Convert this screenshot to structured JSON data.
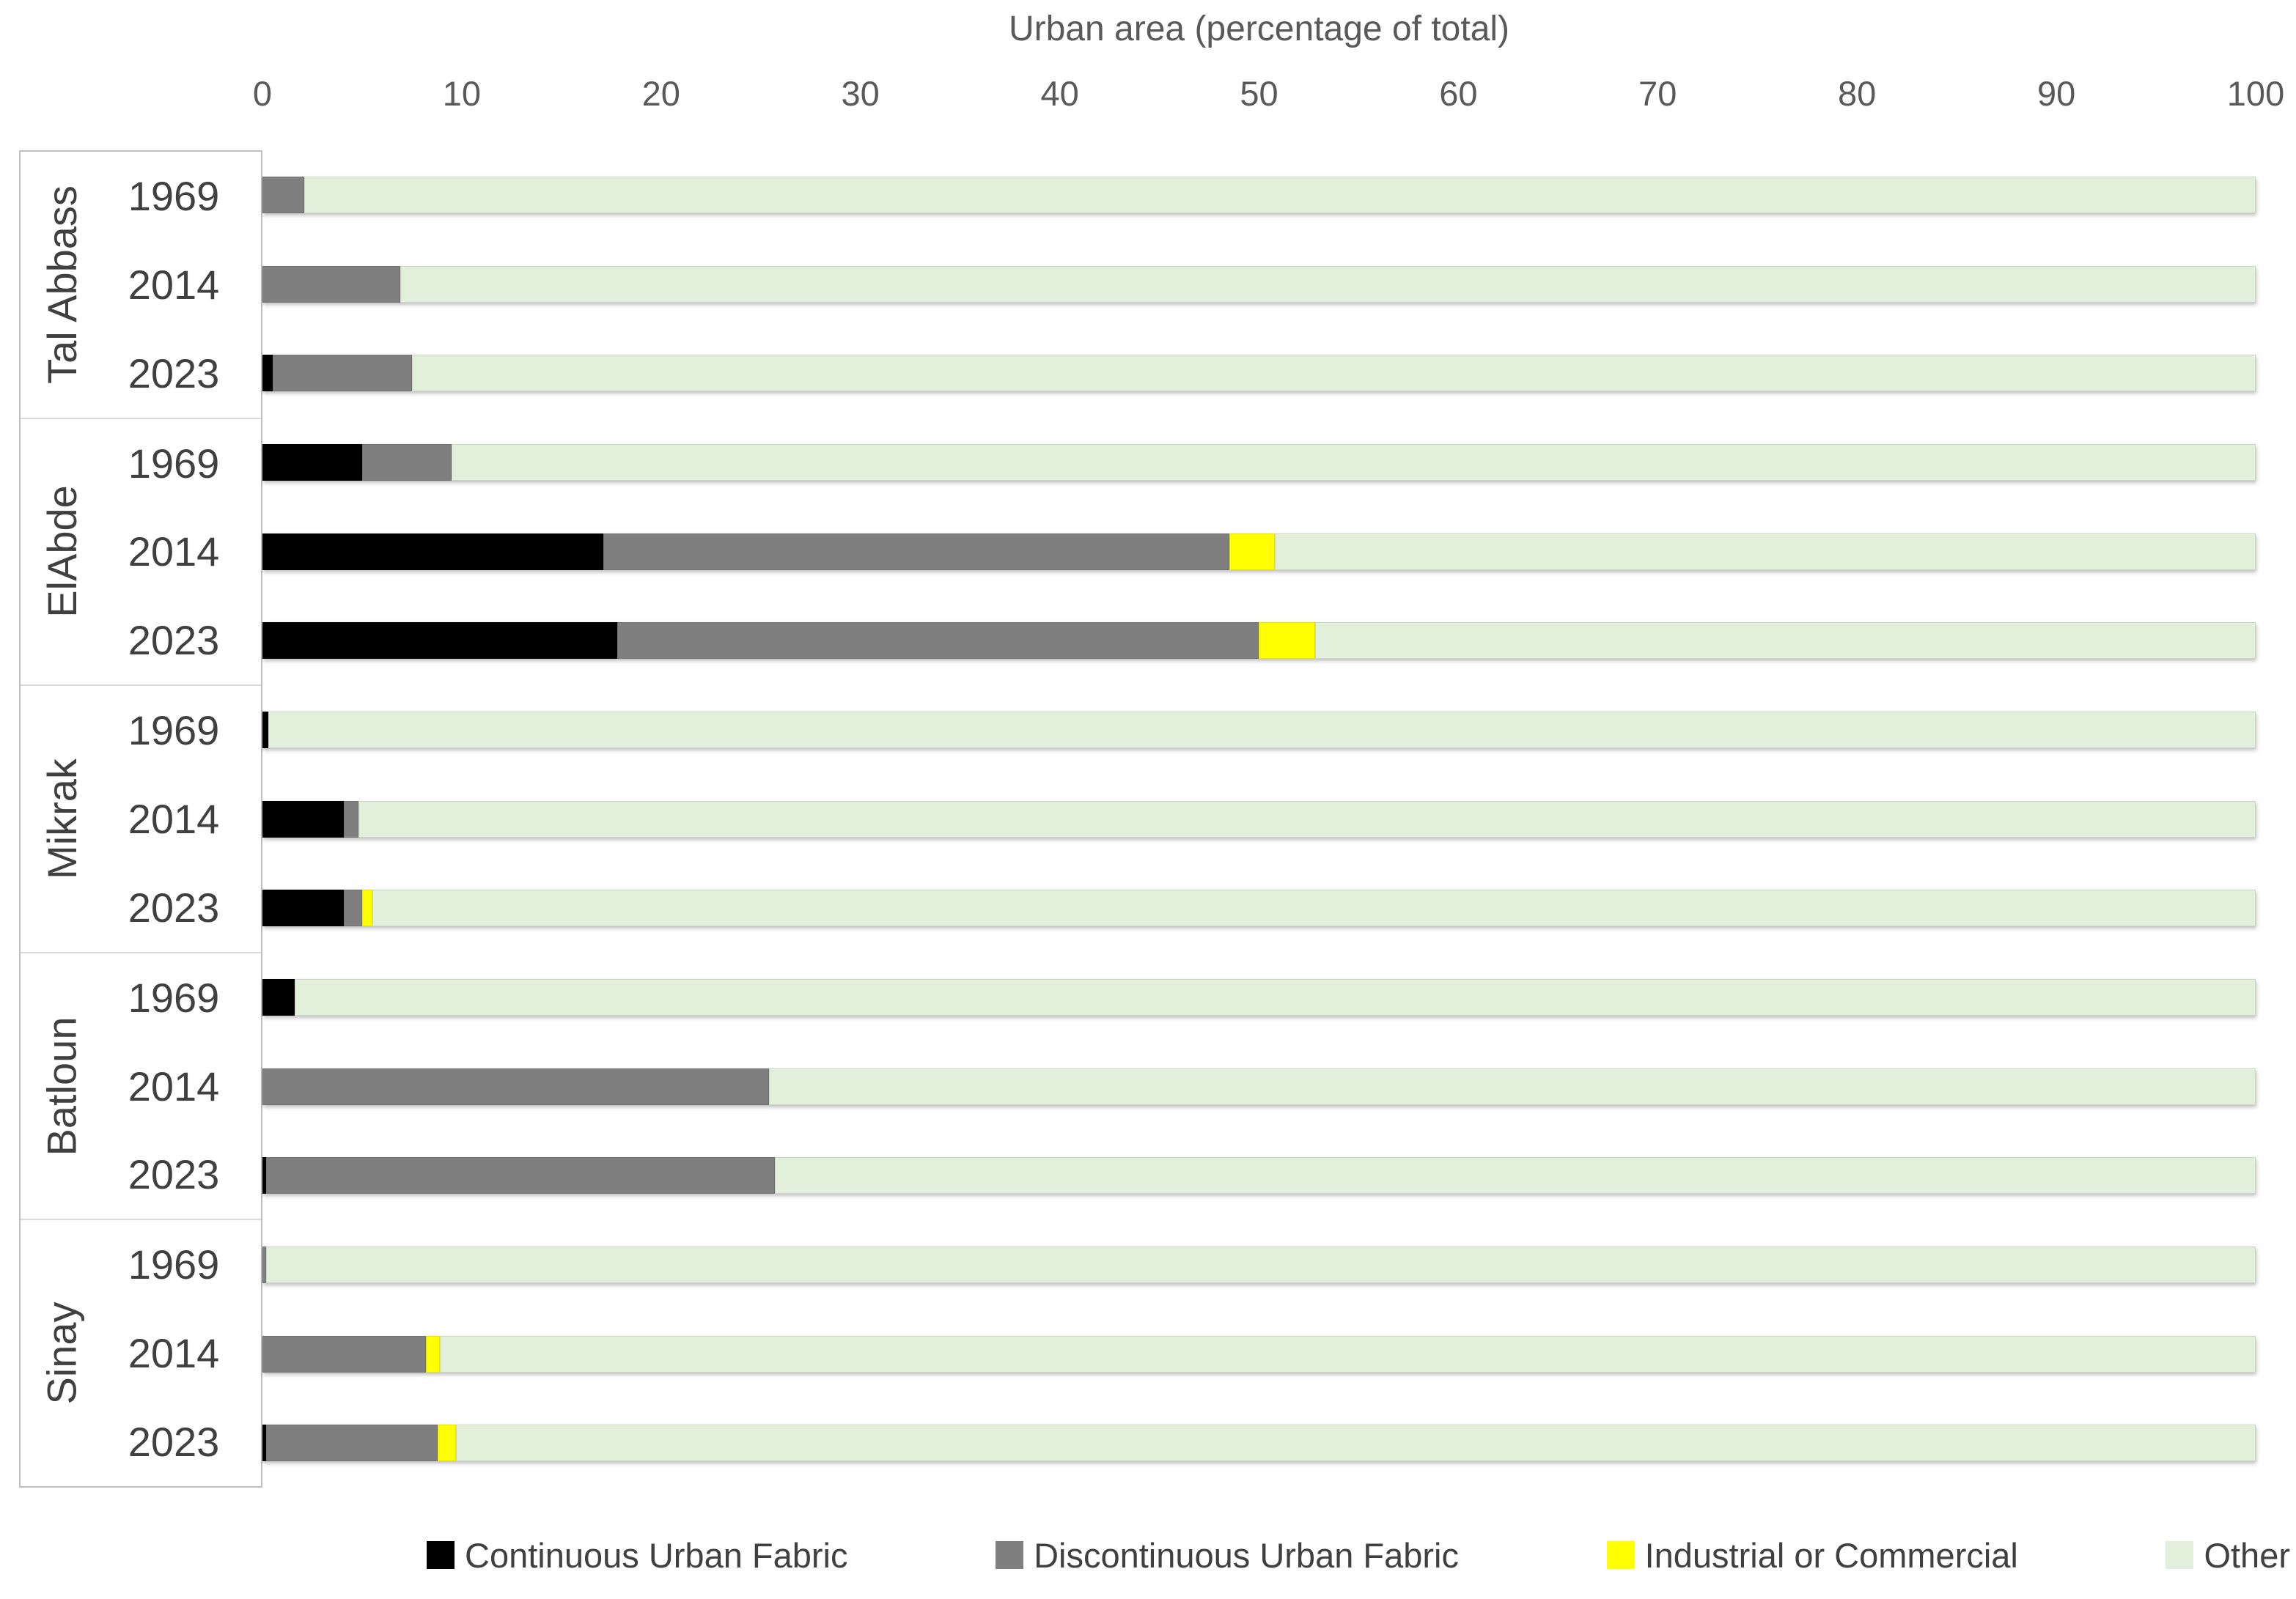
{
  "title": "Urban area (percentage of total)",
  "chart_data": {
    "type": "bar",
    "orientation": "horizontal",
    "stacked": true,
    "title": "Urban area (percentage of total)",
    "x_axis": {
      "label": "Urban area (percentage of total)",
      "position": "top",
      "min": 0,
      "max": 100,
      "ticks": [
        0,
        10,
        20,
        30,
        40,
        50,
        60,
        70,
        80,
        90,
        100
      ]
    },
    "grid": false,
    "legend_position": "bottom",
    "units": "percent",
    "series": [
      {
        "key": "cuf",
        "name": "Continuous Urban Fabric",
        "color": "#000000"
      },
      {
        "key": "duf",
        "name": "Discontinuous Urban Fabric",
        "color": "#7F7F7F"
      },
      {
        "key": "ic",
        "name": "Industrial or Commercial",
        "color": "#FFFF00"
      },
      {
        "key": "other",
        "name": "Other",
        "color": "#E2EFDA"
      }
    ],
    "groups": [
      {
        "name": "Tal Abbass",
        "rows": [
          {
            "year": "1969",
            "values": {
              "cuf": 0,
              "duf": 2.1,
              "ic": 0,
              "other": 97.9
            }
          },
          {
            "year": "2014",
            "values": {
              "cuf": 0,
              "duf": 6.9,
              "ic": 0,
              "other": 93.1
            }
          },
          {
            "year": "2023",
            "values": {
              "cuf": 0.5,
              "duf": 7.0,
              "ic": 0,
              "other": 92.5
            }
          }
        ]
      },
      {
        "name": "ElAbde",
        "rows": [
          {
            "year": "1969",
            "values": {
              "cuf": 5.0,
              "duf": 4.5,
              "ic": 0,
              "other": 90.5
            }
          },
          {
            "year": "2014",
            "values": {
              "cuf": 17.1,
              "duf": 31.4,
              "ic": 2.3,
              "other": 49.2
            }
          },
          {
            "year": "2023",
            "values": {
              "cuf": 17.8,
              "duf": 32.2,
              "ic": 2.8,
              "other": 47.2
            }
          }
        ]
      },
      {
        "name": "Mikrak",
        "rows": [
          {
            "year": "1969",
            "values": {
              "cuf": 0.3,
              "duf": 0,
              "ic": 0,
              "other": 99.7
            }
          },
          {
            "year": "2014",
            "values": {
              "cuf": 4.1,
              "duf": 0.7,
              "ic": 0,
              "other": 95.2
            }
          },
          {
            "year": "2023",
            "values": {
              "cuf": 4.1,
              "duf": 0.9,
              "ic": 0.5,
              "other": 94.5
            }
          }
        ]
      },
      {
        "name": "Batloun",
        "rows": [
          {
            "year": "1969",
            "values": {
              "cuf": 1.6,
              "duf": 0,
              "ic": 0,
              "other": 98.4
            }
          },
          {
            "year": "2014",
            "values": {
              "cuf": 0,
              "duf": 25.4,
              "ic": 0,
              "other": 74.6
            }
          },
          {
            "year": "2023",
            "values": {
              "cuf": 0.2,
              "duf": 25.5,
              "ic": 0,
              "other": 74.3
            }
          }
        ]
      },
      {
        "name": "Sinay",
        "rows": [
          {
            "year": "1969",
            "values": {
              "cuf": 0,
              "duf": 0.2,
              "ic": 0,
              "other": 99.8
            }
          },
          {
            "year": "2014",
            "values": {
              "cuf": 0,
              "duf": 8.2,
              "ic": 0.7,
              "other": 91.1
            }
          },
          {
            "year": "2023",
            "values": {
              "cuf": 0.2,
              "duf": 8.6,
              "ic": 0.9,
              "other": 90.3
            }
          }
        ]
      }
    ]
  },
  "colors": {
    "continuous_urban_fabric": "#000000",
    "discontinuous_urban_fabric": "#7F7F7F",
    "industrial_or_commercial": "#FFFF00",
    "other": "#E2EFDA",
    "axis_text": "#595959",
    "label_text": "#404040",
    "frame_border": "#BFBFBF",
    "group_divider": "#D9D9D9",
    "background": "#FFFFFF"
  }
}
